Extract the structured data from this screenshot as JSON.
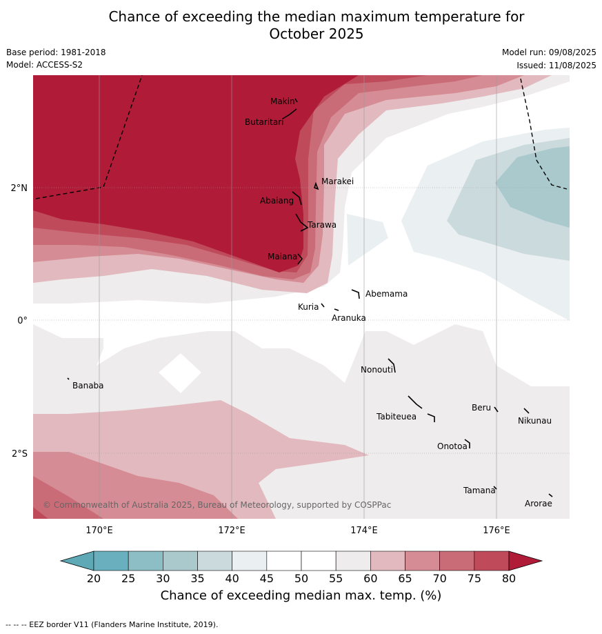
{
  "title_line1": "Chance of exceeding the median maximum temperature for",
  "title_line2": "October 2025",
  "base_period": "Base period: 1981-2018",
  "model": "Model: ACCESS-S2",
  "model_run": "Model run: 09/08/2025",
  "issued": "Issued: 11/08/2025",
  "copyright": "© Commonwealth of Australia 2025, Bureau of Meteorology, supported by COSPPac",
  "lon_ticks": [
    "170°E",
    "172°E",
    "174°E",
    "176°E"
  ],
  "lat_ticks": [
    "2°N",
    "0°",
    "2°S"
  ],
  "places": [
    {
      "name": "Makin"
    },
    {
      "name": "Butaritari"
    },
    {
      "name": "Marakei"
    },
    {
      "name": "Abaiang"
    },
    {
      "name": "Tarawa"
    },
    {
      "name": "Maiana"
    },
    {
      "name": "Abemama"
    },
    {
      "name": "Kuria"
    },
    {
      "name": "Aranuka"
    },
    {
      "name": "Banaba"
    },
    {
      "name": "Nonouti"
    },
    {
      "name": "Beru"
    },
    {
      "name": "Tabiteuea"
    },
    {
      "name": "Nikunau"
    },
    {
      "name": "Onotoa"
    },
    {
      "name": "Tamana"
    },
    {
      "name": "Arorae"
    }
  ],
  "colorbar": {
    "label": "Chance of exceeding median max. temp. (%)",
    "ticks": [
      "20",
      "25",
      "30",
      "35",
      "40",
      "45",
      "50",
      "55",
      "60",
      "65",
      "70",
      "75",
      "80"
    ],
    "colors": [
      "#5fa9b7",
      "#6aafbd",
      "#8dbec5",
      "#a9c9cd",
      "#cbdadd",
      "#eaeff1",
      "#ffffff",
      "#ffffff",
      "#eeeced",
      "#e2b9bf",
      "#d58c95",
      "#c96c77",
      "#bf4a5a",
      "#b01b38"
    ]
  },
  "footer": "--  --  -- EEZ border V11 (Flanders Marine Institute, 2019)."
}
